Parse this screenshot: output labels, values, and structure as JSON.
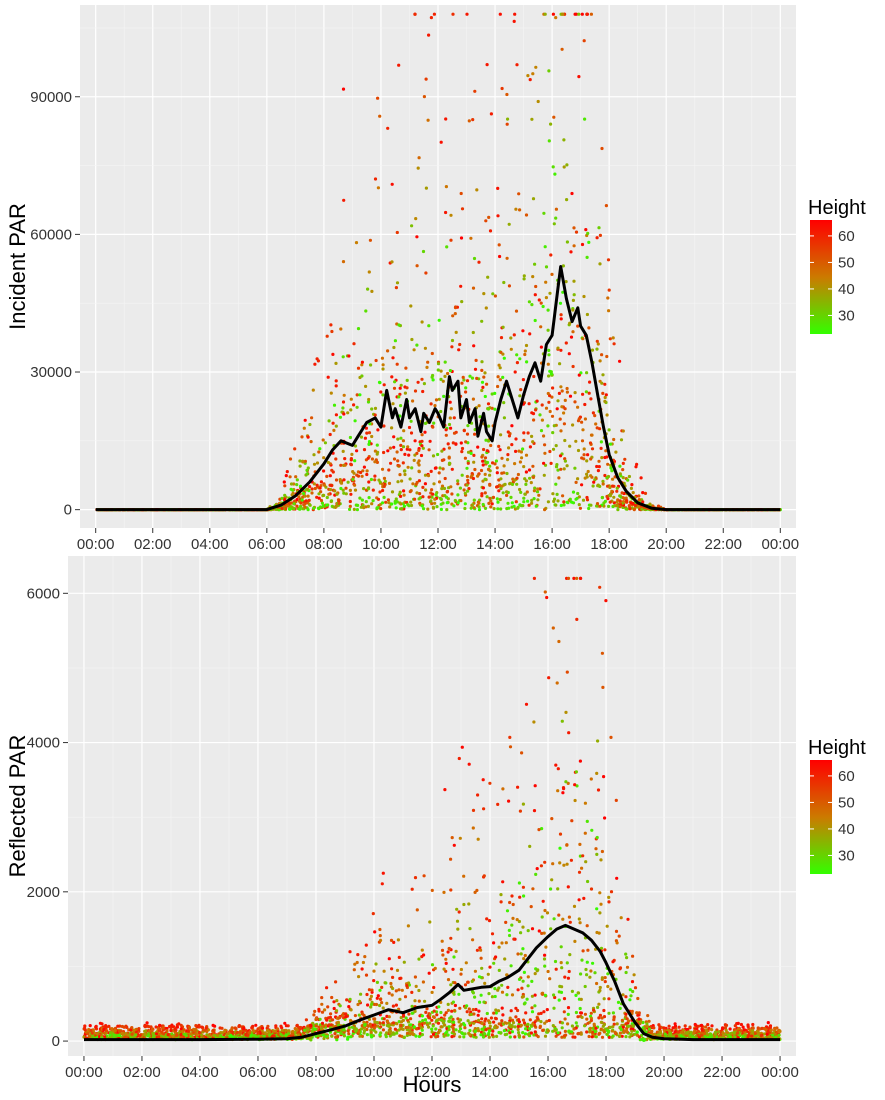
{
  "chart_data": [
    {
      "type": "scatter",
      "title": "",
      "xlabel": "",
      "ylabel": "Incident PAR",
      "x_unit": "hours",
      "xlim": [
        0,
        24
      ],
      "ylim": [
        0,
        110000
      ],
      "x_ticks": [
        0,
        2,
        4,
        6,
        8,
        10,
        12,
        14,
        16,
        18,
        20,
        22,
        24
      ],
      "x_tick_labels": [
        "00:00",
        "02:00",
        "04:00",
        "06:00",
        "08:00",
        "10:00",
        "12:00",
        "14:00",
        "16:00",
        "18:00",
        "20:00",
        "22:00",
        "00:00"
      ],
      "y_ticks": [
        0,
        30000,
        60000,
        90000
      ],
      "y_tick_labels": [
        "0",
        "30000",
        "60000",
        "90000"
      ],
      "grid": true,
      "background": "#ebebeb",
      "legend": {
        "title": "Height",
        "position": "right",
        "labels": [
          "60",
          "50",
          "40",
          "30"
        ],
        "values": [
          60,
          50,
          40,
          30
        ],
        "range": [
          23,
          66
        ],
        "color_low": "#33ff00",
        "color_mid": "#cc7a00",
        "color_high": "#ff0000"
      },
      "mean_line": {
        "color": "#000000",
        "hours": [
          6.0,
          6.5,
          7.0,
          7.5,
          8.0,
          8.3,
          8.6,
          9.0,
          9.2,
          9.5,
          9.8,
          10.0,
          10.2,
          10.4,
          10.5,
          10.7,
          10.9,
          11.0,
          11.2,
          11.4,
          11.5,
          11.7,
          11.9,
          12.0,
          12.2,
          12.4,
          12.5,
          12.7,
          12.8,
          13.0,
          13.1,
          13.3,
          13.4,
          13.6,
          13.7,
          13.9,
          14.0,
          14.2,
          14.4,
          14.6,
          14.8,
          15.0,
          15.2,
          15.4,
          15.6,
          15.8,
          16.0,
          16.2,
          16.3,
          16.5,
          16.7,
          16.9,
          17.0,
          17.2,
          17.4,
          17.6,
          17.8,
          18.0,
          18.3,
          18.6,
          19.0,
          19.5,
          20.0
        ],
        "values": [
          0,
          1000,
          3000,
          6000,
          10000,
          13000,
          15000,
          14000,
          16000,
          19000,
          20000,
          18000,
          26000,
          20000,
          22000,
          18000,
          24000,
          20000,
          22000,
          17000,
          21000,
          19000,
          22000,
          21000,
          18000,
          29000,
          26000,
          28000,
          20000,
          24000,
          19000,
          22000,
          16000,
          21000,
          17000,
          15000,
          19000,
          24000,
          28000,
          24000,
          20000,
          25000,
          29000,
          32000,
          28000,
          36000,
          38000,
          48000,
          53000,
          46000,
          41000,
          44000,
          40000,
          38000,
          32000,
          25000,
          18000,
          12000,
          7000,
          4000,
          1500,
          300,
          0
        ]
      }
    },
    {
      "type": "scatter",
      "title": "",
      "xlabel": "Hours",
      "ylabel": "Reflected PAR",
      "x_unit": "hours",
      "xlim": [
        0,
        24
      ],
      "ylim": [
        -200,
        6500
      ],
      "x_ticks": [
        0,
        2,
        4,
        6,
        8,
        10,
        12,
        14,
        16,
        18,
        20,
        22,
        24
      ],
      "x_tick_labels": [
        "00:00",
        "02:00",
        "04:00",
        "06:00",
        "08:00",
        "10:00",
        "12:00",
        "14:00",
        "16:00",
        "18:00",
        "20:00",
        "22:00",
        "00:00"
      ],
      "y_ticks": [
        0,
        2000,
        4000,
        6000
      ],
      "y_tick_labels": [
        "0",
        "2000",
        "4000",
        "6000"
      ],
      "grid": true,
      "background": "#ebebeb",
      "legend": {
        "title": "Height",
        "position": "right",
        "labels": [
          "60",
          "50",
          "40",
          "30"
        ],
        "values": [
          60,
          50,
          40,
          30
        ],
        "range": [
          23,
          66
        ],
        "color_low": "#33ff00",
        "color_mid": "#cc7a00",
        "color_high": "#ff0000"
      },
      "mean_line": {
        "color": "#000000",
        "hours": [
          0,
          2,
          4,
          6,
          7,
          7.5,
          8.0,
          8.5,
          9.0,
          9.5,
          10.0,
          10.5,
          11.0,
          11.5,
          12.0,
          12.3,
          12.6,
          12.9,
          13.1,
          13.4,
          13.7,
          14.0,
          14.3,
          14.6,
          15.0,
          15.3,
          15.6,
          16.0,
          16.3,
          16.6,
          16.9,
          17.2,
          17.5,
          17.8,
          18.0,
          18.3,
          18.6,
          19.0,
          19.3,
          19.6,
          20.0,
          21,
          22,
          23,
          24
        ],
        "values": [
          20,
          20,
          20,
          25,
          30,
          50,
          100,
          150,
          200,
          280,
          350,
          420,
          380,
          450,
          480,
          560,
          650,
          760,
          680,
          700,
          720,
          730,
          800,
          850,
          950,
          1100,
          1250,
          1400,
          1500,
          1550,
          1500,
          1450,
          1350,
          1200,
          1050,
          800,
          500,
          250,
          100,
          50,
          30,
          20,
          20,
          20,
          20
        ]
      }
    }
  ]
}
